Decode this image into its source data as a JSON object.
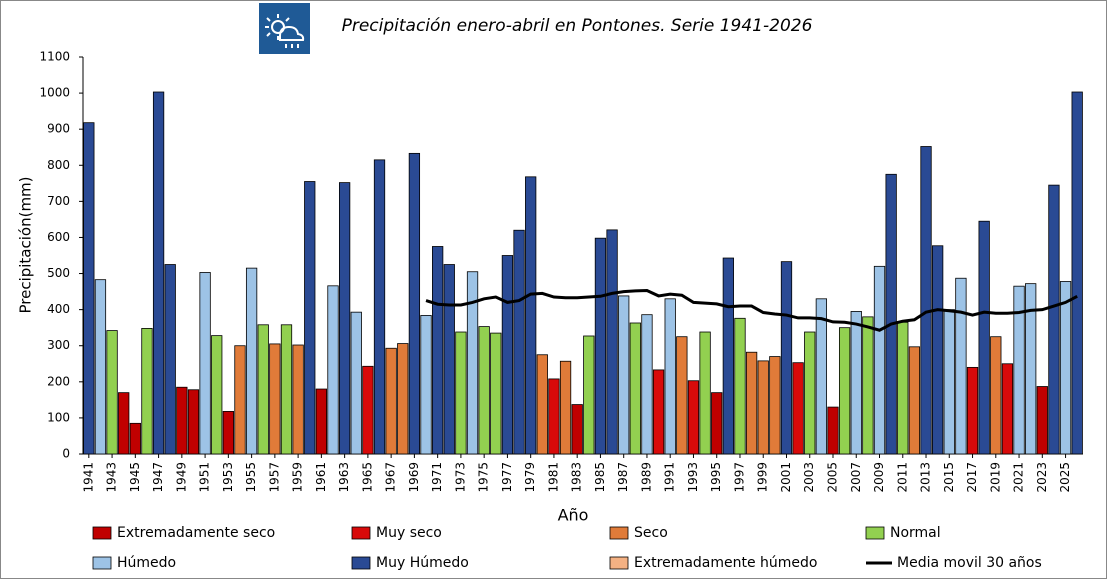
{
  "chart_data": {
    "type": "bar",
    "title": "Precipitación enero-abril en Pontones. Serie 1941-2026",
    "y_label": "Precipitación(mm)",
    "x_label": "Año",
    "xlim": [
      1940.5,
      2026.5
    ],
    "xticks": [
      1941,
      1943,
      1945,
      1947,
      1949,
      1951,
      1953,
      1955,
      1957,
      1959,
      1961,
      1963,
      1965,
      1967,
      1969,
      1971,
      1973,
      1975,
      1977,
      1979,
      1981,
      1983,
      1985,
      1987,
      1989,
      1991,
      1993,
      1995,
      1997,
      1999,
      2001,
      2003,
      2005,
      2007,
      2009,
      2011,
      2013,
      2015,
      2017,
      2019,
      2021,
      2023,
      2025
    ],
    "ylim": [
      0,
      1100
    ],
    "yticks": [
      0,
      100,
      200,
      300,
      400,
      500,
      600,
      700,
      800,
      900,
      1000,
      1100
    ],
    "grid": false,
    "series": [
      {
        "name": "Extremadamente seco",
        "color": "#c00000",
        "type": "bar",
        "x": [
          1944,
          1945,
          1949,
          1950,
          1953,
          1961,
          1983,
          1995,
          2005,
          2023
        ],
        "values": [
          170,
          85,
          185,
          178,
          118,
          180,
          137,
          170,
          130,
          187
        ]
      },
      {
        "name": "Muy seco",
        "color": "#d80a0a",
        "type": "bar",
        "x": [
          1965,
          1981,
          1990,
          1993,
          2002,
          2017,
          2020
        ],
        "values": [
          243,
          208,
          233,
          203,
          253,
          240,
          250
        ]
      },
      {
        "name": "Seco",
        "color": "#e07b39",
        "type": "bar",
        "x": [
          1954,
          1957,
          1959,
          1967,
          1968,
          1980,
          1982,
          1992,
          1998,
          1999,
          2000,
          2012,
          2019
        ],
        "values": [
          300,
          305,
          302,
          293,
          306,
          275,
          257,
          325,
          282,
          258,
          270,
          297,
          325
        ]
      },
      {
        "name": "Normal",
        "color": "#92d050",
        "type": "bar",
        "x": [
          1943,
          1946,
          1952,
          1956,
          1958,
          1973,
          1975,
          1976,
          1984,
          1988,
          1994,
          1997,
          2003,
          2006,
          2008,
          2011
        ],
        "values": [
          342,
          348,
          328,
          358,
          358,
          338,
          353,
          335,
          327,
          363,
          338,
          376,
          338,
          350,
          380,
          365
        ]
      },
      {
        "name": "Húmedo",
        "color": "#9dc3e6",
        "type": "bar",
        "x": [
          1942,
          1951,
          1955,
          1962,
          1964,
          1970,
          1974,
          1987,
          1989,
          1991,
          2004,
          2007,
          2009,
          2015,
          2016,
          2021,
          2022,
          2025
        ],
        "values": [
          483,
          503,
          515,
          466,
          393,
          384,
          505,
          438,
          386,
          430,
          430,
          395,
          520,
          400,
          487,
          465,
          472,
          478
        ]
      },
      {
        "name": "Muy Húmedo",
        "color": "#2a4a94",
        "type": "bar",
        "x": [
          1941,
          1947,
          1948,
          1960,
          1963,
          1966,
          1969,
          1971,
          1972,
          1977,
          1978,
          1979,
          1985,
          1986,
          1996,
          2001,
          2010,
          2013,
          2014,
          2018,
          2024,
          2026
        ],
        "values": [
          918,
          1003,
          525,
          755,
          752,
          815,
          833,
          575,
          525,
          550,
          620,
          768,
          598,
          621,
          543,
          533,
          775,
          852,
          577,
          645,
          745,
          1003
        ]
      },
      {
        "name": "Extremadamente húmedo",
        "color": "#f4b183",
        "type": "bar",
        "x": [],
        "values": []
      },
      {
        "name": "Media movil 30 años",
        "color": "#000000",
        "type": "line",
        "x": [
          1970,
          1971,
          1972,
          1973,
          1974,
          1975,
          1976,
          1977,
          1978,
          1979,
          1980,
          1981,
          1982,
          1983,
          1984,
          1985,
          1986,
          1987,
          1988,
          1989,
          1990,
          1991,
          1992,
          1993,
          1994,
          1995,
          1996,
          1997,
          1998,
          1999,
          2000,
          2001,
          2002,
          2003,
          2004,
          2005,
          2006,
          2007,
          2008,
          2009,
          2010,
          2011,
          2012,
          2013,
          2014,
          2015,
          2016,
          2017,
          2018,
          2019,
          2020,
          2021,
          2022,
          2023,
          2024,
          2025,
          2026
        ],
        "values": [
          425,
          415,
          413,
          413,
          420,
          430,
          435,
          420,
          425,
          443,
          445,
          435,
          433,
          433,
          435,
          437,
          445,
          450,
          452,
          453,
          438,
          443,
          440,
          420,
          418,
          416,
          408,
          410,
          410,
          392,
          388,
          385,
          377,
          377,
          375,
          366,
          365,
          360,
          352,
          343,
          360,
          368,
          372,
          393,
          400,
          397,
          393,
          385,
          393,
          390,
          390,
          392,
          398,
          400,
          410,
          420,
          437
        ]
      }
    ]
  }
}
